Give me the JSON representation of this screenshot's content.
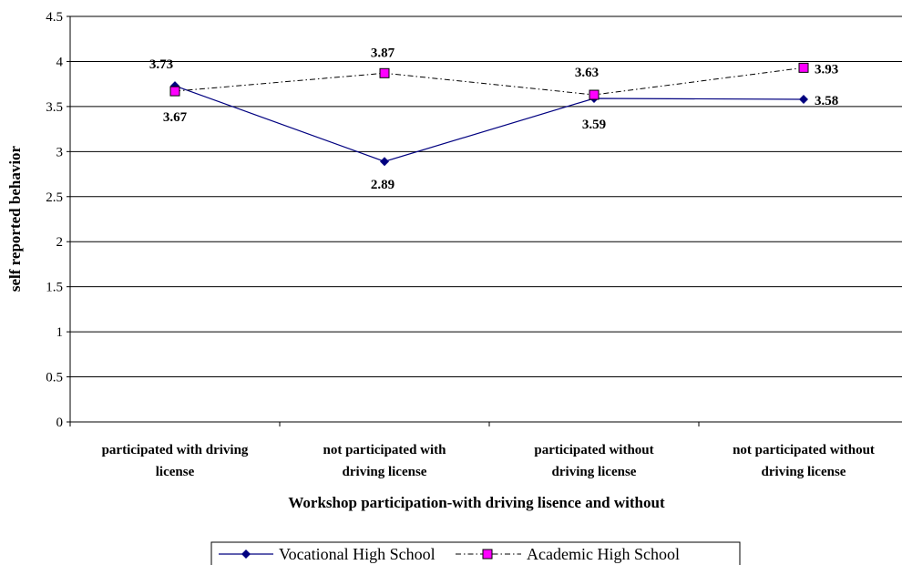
{
  "chart_data": {
    "type": "line",
    "categories": [
      [
        "participated with driving",
        "license"
      ],
      [
        "not participated with",
        "driving license"
      ],
      [
        "participated without",
        "driving license"
      ],
      [
        "not participated without",
        "driving license"
      ]
    ],
    "series": [
      {
        "name": "Vocational High School",
        "values": [
          3.73,
          2.89,
          3.59,
          3.58
        ],
        "color": "#000080",
        "marker": "diamond",
        "line_style": "solid",
        "labels": [
          "3.73",
          "2.89",
          "3.59",
          "3.58"
        ]
      },
      {
        "name": "Academic High School",
        "values": [
          3.67,
          3.87,
          3.63,
          3.93
        ],
        "color": "#000000",
        "marker_fill": "#ff00ff",
        "marker": "square",
        "line_style": "dash-dot",
        "labels": [
          "3.67",
          "3.87",
          "3.63",
          "3.93"
        ]
      }
    ],
    "xlabel": "Workshop participation-with driving lisence and without",
    "ylabel": "self reported behavior",
    "ylim": [
      0,
      4.5
    ],
    "yticks": [
      "0",
      "0.5",
      "1",
      "1.5",
      "2",
      "2.5",
      "3",
      "3.5",
      "4",
      "4.5"
    ],
    "grid": true,
    "legend_position": "bottom"
  }
}
